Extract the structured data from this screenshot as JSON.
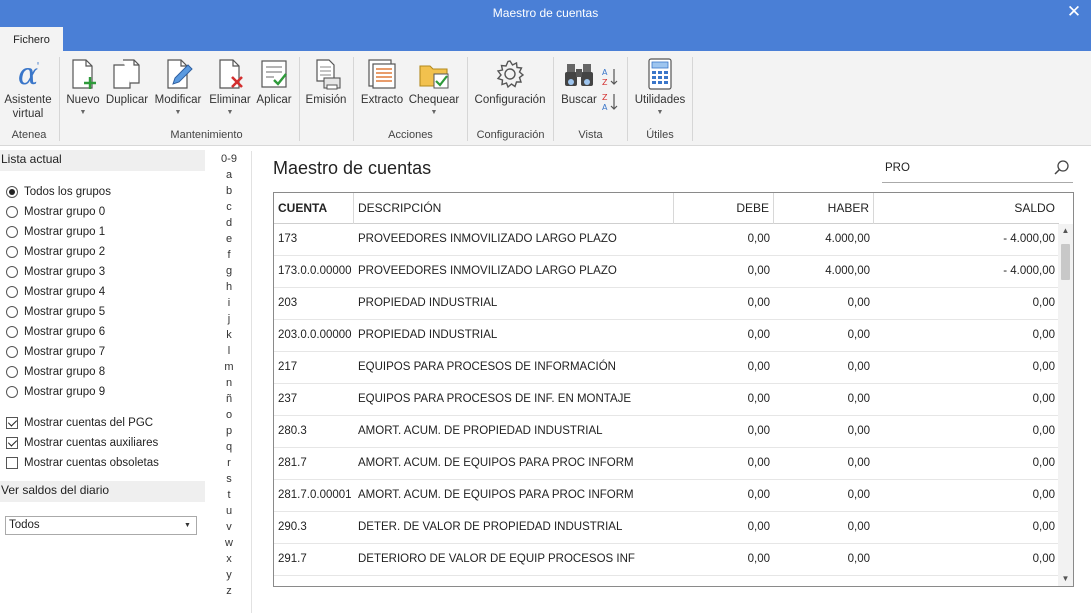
{
  "window": {
    "title": "Maestro de cuentas",
    "close_glyph": "✕"
  },
  "tabs": [
    {
      "label": "Fichero"
    }
  ],
  "ribbon": {
    "asistente": {
      "line1": "Asistente",
      "line2": "virtual"
    },
    "nuevo": "Nuevo",
    "duplicar": "Duplicar",
    "modificar": "Modificar",
    "eliminar": "Eliminar",
    "aplicar": "Aplicar",
    "emision": "Emisión",
    "extracto": "Extracto",
    "chequear": "Chequear",
    "configuracion": "Configuración",
    "buscar": "Buscar",
    "utilidades": "Utilidades",
    "groups": {
      "atenea": "Atenea",
      "mantenimiento": "Mantenimiento",
      "acciones": "Acciones",
      "configuracion": "Configuración",
      "vista": "Vista",
      "utiles": "Útiles"
    }
  },
  "left": {
    "lista_actual": "Lista actual",
    "groups": [
      "Todos los grupos",
      "Mostrar grupo 0",
      "Mostrar grupo 1",
      "Mostrar grupo 2",
      "Mostrar grupo 3",
      "Mostrar grupo 4",
      "Mostrar grupo 5",
      "Mostrar grupo 6",
      "Mostrar grupo 7",
      "Mostrar grupo 8",
      "Mostrar grupo 9"
    ],
    "selected_group": 0,
    "checks": [
      {
        "label": "Mostrar cuentas del PGC",
        "checked": true
      },
      {
        "label": "Mostrar cuentas auxiliares",
        "checked": true
      },
      {
        "label": "Mostrar cuentas obsoletas",
        "checked": false
      }
    ],
    "ver_saldos": "Ver saldos del diario",
    "saldos_value": "Todos"
  },
  "alphabet": [
    "0-9",
    "a",
    "b",
    "c",
    "d",
    "e",
    "f",
    "g",
    "h",
    "i",
    "j",
    "k",
    "l",
    "m",
    "n",
    "ñ",
    "o",
    "p",
    "q",
    "r",
    "s",
    "t",
    "u",
    "v",
    "w",
    "x",
    "y",
    "z"
  ],
  "main": {
    "title": "Maestro de cuentas",
    "search_value": "PRO",
    "columns": {
      "cuenta": "CUENTA",
      "descripcion": "DESCRIPCIÓN",
      "debe": "DEBE",
      "haber": "HABER",
      "saldo": "SALDO"
    },
    "rows": [
      {
        "cuenta": "173",
        "descripcion": "PROVEEDORES INMOVILIZADO LARGO PLAZO",
        "debe": "0,00",
        "haber": "4.000,00",
        "saldo": "- 4.000,00"
      },
      {
        "cuenta": "173.0.0.00000",
        "descripcion": "PROVEEDORES INMOVILIZADO LARGO PLAZO",
        "debe": "0,00",
        "haber": "4.000,00",
        "saldo": "- 4.000,00"
      },
      {
        "cuenta": "203",
        "descripcion": "PROPIEDAD INDUSTRIAL",
        "debe": "0,00",
        "haber": "0,00",
        "saldo": "0,00"
      },
      {
        "cuenta": "203.0.0.00000",
        "descripcion": "PROPIEDAD INDUSTRIAL",
        "debe": "0,00",
        "haber": "0,00",
        "saldo": "0,00"
      },
      {
        "cuenta": "217",
        "descripcion": "EQUIPOS PARA PROCESOS DE INFORMACIÓN",
        "debe": "0,00",
        "haber": "0,00",
        "saldo": "0,00"
      },
      {
        "cuenta": "237",
        "descripcion": "EQUIPOS PARA PROCESOS DE INF. EN MONTAJE",
        "debe": "0,00",
        "haber": "0,00",
        "saldo": "0,00"
      },
      {
        "cuenta": "280.3",
        "descripcion": "AMORT. ACUM. DE PROPIEDAD INDUSTRIAL",
        "debe": "0,00",
        "haber": "0,00",
        "saldo": "0,00"
      },
      {
        "cuenta": "281.7",
        "descripcion": "AMORT. ACUM. DE EQUIPOS PARA PROC INFORM",
        "debe": "0,00",
        "haber": "0,00",
        "saldo": "0,00"
      },
      {
        "cuenta": "281.7.0.00001",
        "descripcion": "AMORT. ACUM. DE EQUIPOS PARA PROC INFORM",
        "debe": "0,00",
        "haber": "0,00",
        "saldo": "0,00"
      },
      {
        "cuenta": "290.3",
        "descripcion": "DETER. DE VALOR DE PROPIEDAD INDUSTRIAL",
        "debe": "0,00",
        "haber": "0,00",
        "saldo": "0,00"
      },
      {
        "cuenta": "291.7",
        "descripcion": "DETERIORO DE VALOR DE EQUIP PROCESOS INF",
        "debe": "0,00",
        "haber": "0,00",
        "saldo": "0,00"
      }
    ]
  },
  "colors": {
    "titlebar": "#4a7fd6",
    "ribbon": "#f3f3f3",
    "accent_blue": "#3a76c9"
  }
}
